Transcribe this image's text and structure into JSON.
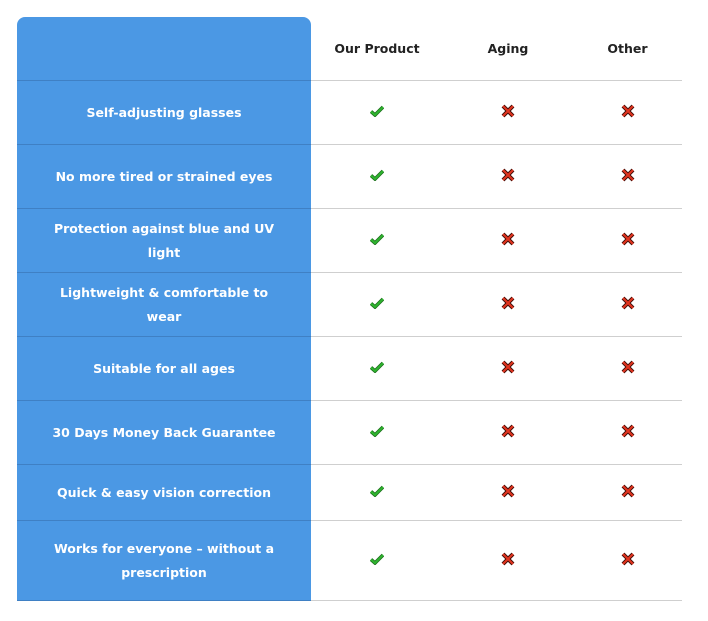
{
  "header": {
    "feature": "",
    "columns": [
      "Our Product",
      "Aging",
      "Other"
    ]
  },
  "colors": {
    "accent": "#4b98e4",
    "check": "#2aa52a",
    "cross": "#d8301f"
  },
  "rows": [
    {
      "feature": "Self-adjusting glasses",
      "values": [
        "check-icon",
        "cross-icon",
        "cross-icon"
      ]
    },
    {
      "feature": "No more tired or strained eyes",
      "values": [
        "check-icon",
        "cross-icon",
        "cross-icon"
      ]
    },
    {
      "feature": "Protection against blue and UV light",
      "values": [
        "check-icon",
        "cross-icon",
        "cross-icon"
      ]
    },
    {
      "feature": "Lightweight & comfortable to wear",
      "values": [
        "check-icon",
        "cross-icon",
        "cross-icon"
      ]
    },
    {
      "feature": "Suitable for all ages",
      "values": [
        "check-icon",
        "cross-icon",
        "cross-icon"
      ]
    },
    {
      "feature": "30 Days Money Back Guarantee",
      "values": [
        "check-icon",
        "cross-icon",
        "cross-icon"
      ]
    },
    {
      "feature": "Quick & easy vision correction",
      "values": [
        "check-icon",
        "cross-icon",
        "cross-icon"
      ]
    },
    {
      "feature": "Works for everyone – without a prescription",
      "values": [
        "check-icon",
        "cross-icon",
        "cross-icon"
      ]
    }
  ]
}
